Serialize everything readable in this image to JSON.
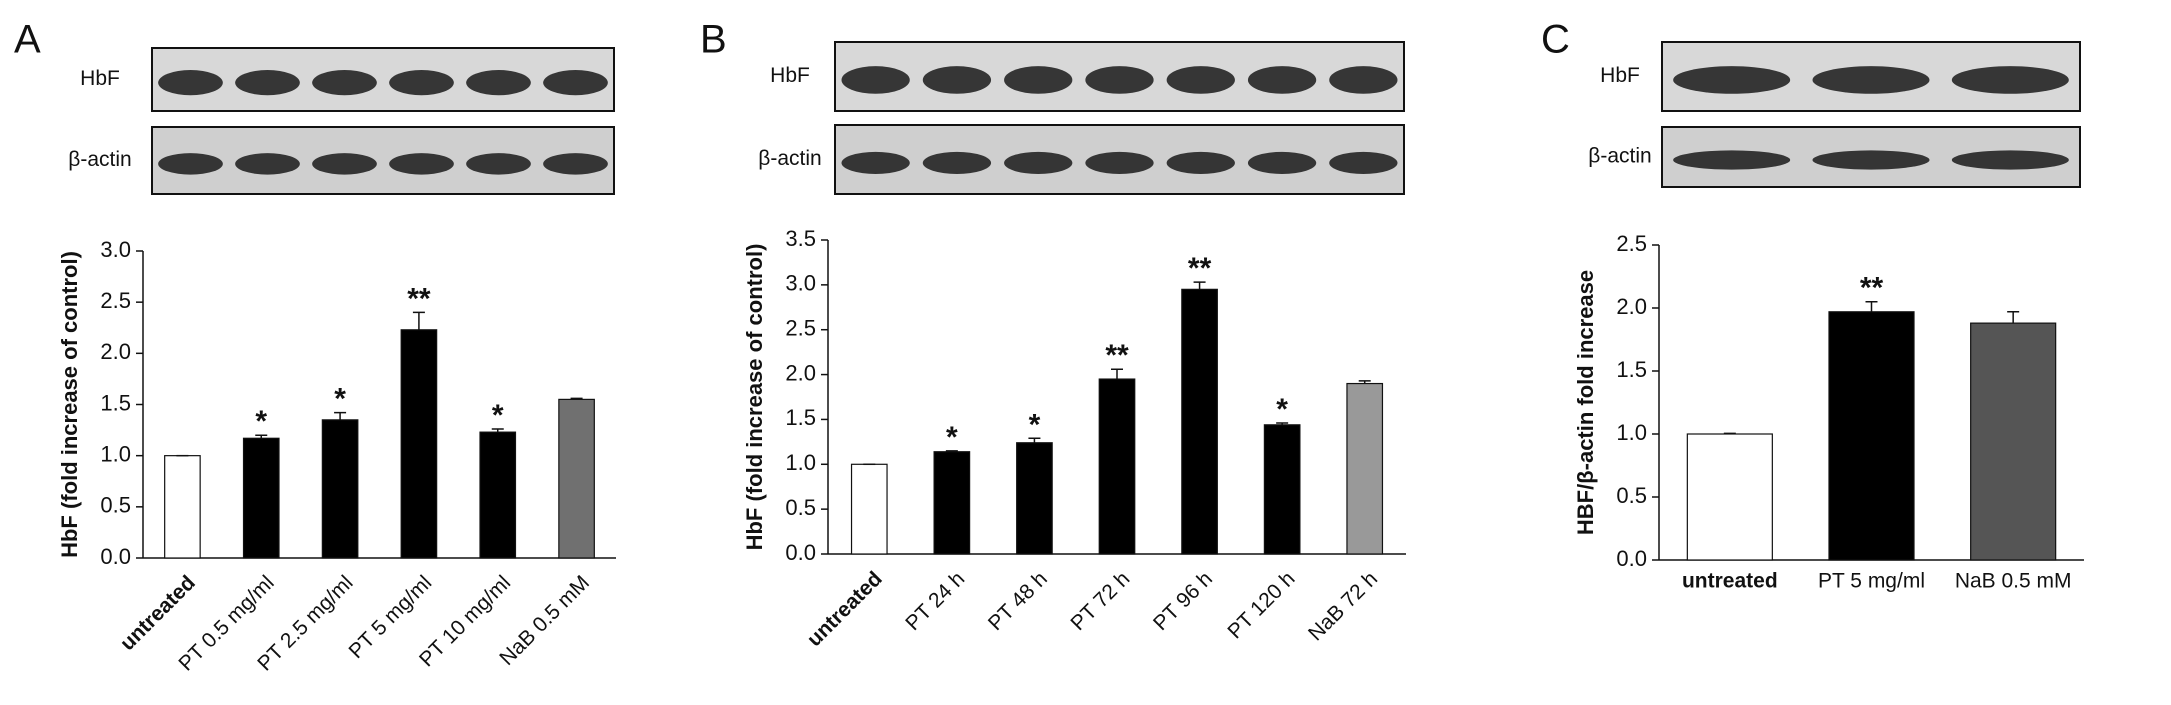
{
  "chart_data": [
    {
      "type": "bar",
      "panel": "A",
      "blot_labels": [
        "HbF",
        "β-actin"
      ],
      "ylabel": "HbF (fold increase of control)",
      "categories": [
        "untreated",
        "PT 0.5 mg/ml",
        "PT 2.5 mg/ml",
        "PT 5 mg/ml",
        "PT 10 mg/ml",
        "NaB 0.5 mM"
      ],
      "values": [
        1.0,
        1.17,
        1.35,
        2.23,
        1.23,
        1.55
      ],
      "errors": [
        0,
        0.03,
        0.07,
        0.17,
        0.03,
        0.01
      ],
      "significance": [
        null,
        "*",
        "*",
        "**",
        "*",
        null
      ],
      "colors": [
        "#ffffff",
        "#000000",
        "#000000",
        "#000000",
        "#000000",
        "#707070"
      ],
      "ylim": [
        0,
        3
      ],
      "yticks": [
        {
          "value": 0,
          "label": "0.0"
        },
        0.5,
        {
          "value": 1,
          "label": "1.0"
        },
        1.5,
        {
          "value": 2,
          "label": "2.0"
        },
        2.5,
        {
          "value": 3,
          "label": "3.0"
        }
      ]
    },
    {
      "type": "bar",
      "panel": "B",
      "blot_labels": [
        "HbF",
        "β-actin"
      ],
      "ylabel": "HbF (fold increase of control)",
      "categories": [
        "untreated",
        "PT 24 h",
        "PT 48 h",
        "PT 72 h",
        "PT 96 h",
        "PT 120 h",
        "NaB 72 h"
      ],
      "values": [
        1.0,
        1.14,
        1.24,
        1.95,
        2.95,
        1.44,
        1.9
      ],
      "errors": [
        0,
        0.01,
        0.05,
        0.11,
        0.08,
        0.02,
        0.03
      ],
      "significance": [
        null,
        "*",
        "*",
        "**",
        "**",
        "*",
        null
      ],
      "colors": [
        "#ffffff",
        "#000000",
        "#000000",
        "#000000",
        "#000000",
        "#000000",
        "#999999"
      ],
      "ylim": [
        0,
        3.5
      ],
      "yticks": [
        {
          "value": 0,
          "label": "0.0"
        },
        0.5,
        {
          "value": 1,
          "label": "1.0"
        },
        1.5,
        {
          "value": 2,
          "label": "2.0"
        },
        2.5,
        {
          "value": 3,
          "label": "3.0"
        },
        3.5
      ]
    },
    {
      "type": "bar",
      "panel": "C",
      "blot_labels": [
        "HbF",
        "β-actin"
      ],
      "ylabel": "HBF/β-actin fold increase",
      "categories": [
        "untreated",
        "PT 5 mg/ml",
        "NaB 0.5 mM"
      ],
      "values": [
        1.0,
        1.97,
        1.88
      ],
      "errors": [
        0.005,
        0.08,
        0.09
      ],
      "significance": [
        null,
        "**",
        null
      ],
      "colors": [
        "#ffffff",
        "#000000",
        "#555555"
      ],
      "ylim": [
        0,
        2.5
      ],
      "yticks": [
        {
          "value": 0,
          "label": "0.0"
        },
        0.5,
        {
          "value": 1,
          "label": "1.0"
        },
        1.5,
        {
          "value": 2,
          "label": "2.0"
        },
        2.5
      ]
    }
  ]
}
